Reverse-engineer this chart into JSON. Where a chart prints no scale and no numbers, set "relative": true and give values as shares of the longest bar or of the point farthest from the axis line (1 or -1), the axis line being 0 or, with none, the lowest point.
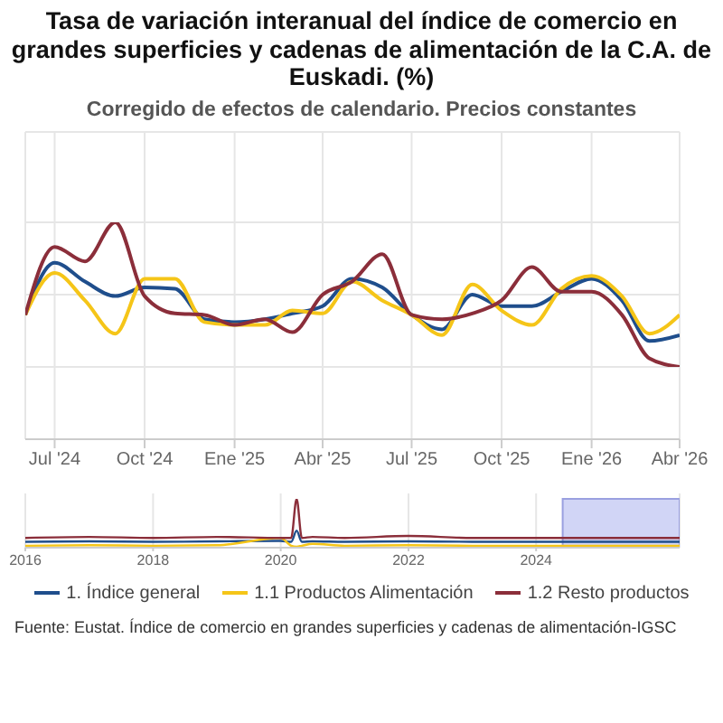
{
  "chart_data": [
    {
      "type": "line",
      "title": "Tasa de variación interanual del índice de comercio en grandes superficies y cadenas de alimentación de la C.A. de Euskadi. (%)",
      "subtitle": "Corregido de efectos de calendario. Precios constantes",
      "annotations": [
        "Fuente: Eustat. Índice de comercio en grandes superficies y cadenas de alimentación-IGSC"
      ],
      "relative": true,
      "x": [
        "2024-06",
        "2024-07",
        "2024-08",
        "2024-09",
        "2024-10",
        "2024-11",
        "2024-12",
        "2025-01",
        "2025-02",
        "2025-03",
        "2025-04",
        "2025-05",
        "2025-06",
        "2025-07",
        "2025-08",
        "2025-09",
        "2025-10",
        "2025-11",
        "2025-12",
        "2026-01",
        "2026-02",
        "2026-03",
        "2026-04"
      ],
      "xlim": [
        "2024-06",
        "2026-04"
      ],
      "xticks": [
        {
          "value": "2024-07",
          "label": "Jul '24"
        },
        {
          "value": "2024-10",
          "label": "Oct '24"
        },
        {
          "value": "2025-01",
          "label": "Ene '25"
        },
        {
          "value": "2025-04",
          "label": "Abr '25"
        },
        {
          "value": "2025-07",
          "label": "Jul '25"
        },
        {
          "value": "2025-10",
          "label": "Oct '25"
        },
        {
          "value": "2026-01",
          "label": "Ene '26"
        },
        {
          "value": "2026-04",
          "label": "Abr '26"
        }
      ],
      "series": [
        {
          "name": "1. Índice general",
          "color": "#1f4e8c",
          "values": [
            0.36,
            0.72,
            0.59,
            0.49,
            0.55,
            0.54,
            0.33,
            0.31,
            0.33,
            0.37,
            0.42,
            0.61,
            0.55,
            0.36,
            0.26,
            0.5,
            0.42,
            0.42,
            0.52,
            0.61,
            0.46,
            0.18,
            0.22
          ]
        },
        {
          "name": "1.1 Productos Alimentación",
          "color": "#f5c518",
          "values": [
            0.36,
            0.65,
            0.46,
            0.23,
            0.61,
            0.61,
            0.31,
            0.29,
            0.29,
            0.39,
            0.37,
            0.59,
            0.46,
            0.36,
            0.22,
            0.57,
            0.39,
            0.29,
            0.54,
            0.63,
            0.49,
            0.23,
            0.36
          ]
        },
        {
          "name": "1.2 Resto productos",
          "color": "#8b2e3a",
          "values": [
            0.36,
            0.83,
            0.73,
            1,
            0.49,
            0.37,
            0.36,
            0.29,
            0.33,
            0.24,
            0.5,
            0.59,
            0.78,
            0.36,
            0.33,
            0.37,
            0.46,
            0.69,
            0.52,
            0.52,
            0.36,
            0.06,
            0
          ]
        }
      ],
      "grid": true,
      "legend": "bottom",
      "marker": "none",
      "line_style": "solid"
    },
    {
      "type": "line",
      "relative": true,
      "x": [
        "2016-01",
        "2017-01",
        "2018-01",
        "2019-01",
        "2020-01",
        "2020-03",
        "2020-04",
        "2020-05",
        "2020-07",
        "2021-01",
        "2022-01",
        "2023-01",
        "2024-01",
        "2025-01",
        "2026-04"
      ],
      "xlim": [
        "2016-01",
        "2026-04"
      ],
      "xticks": [
        {
          "value": "2016-01",
          "label": "2016"
        },
        {
          "value": "2018-01",
          "label": "2018"
        },
        {
          "value": "2020-01",
          "label": "2020"
        },
        {
          "value": "2022-01",
          "label": "2022"
        },
        {
          "value": "2024-01",
          "label": "2024"
        }
      ],
      "series": [
        {
          "color": "#1f4e8c",
          "values": [
            0.12,
            0.13,
            0.12,
            0.13,
            0.14,
            0.12,
            0.35,
            0.12,
            0.13,
            0.12,
            0.13,
            0.12,
            0.12,
            0.12,
            0.12
          ]
        },
        {
          "color": "#f5c518",
          "values": [
            0.04,
            0.05,
            0.04,
            0.05,
            0.2,
            0.04,
            0.02,
            0.04,
            0.08,
            0.04,
            0.05,
            0.04,
            0.04,
            0.04,
            0.04
          ]
        },
        {
          "color": "#8b2e3a",
          "values": [
            0.2,
            0.22,
            0.2,
            0.22,
            0.2,
            0.2,
            1,
            0.2,
            0.22,
            0.2,
            0.24,
            0.2,
            0.2,
            0.2,
            0.2
          ]
        }
      ],
      "bands": [
        {
          "axis": "x",
          "from": "2024-06",
          "to": "2026-04",
          "color": "#ccd0f5"
        }
      ],
      "grid": "x",
      "tick_labels": "x",
      "marker": "none",
      "line_style": "solid"
    }
  ]
}
